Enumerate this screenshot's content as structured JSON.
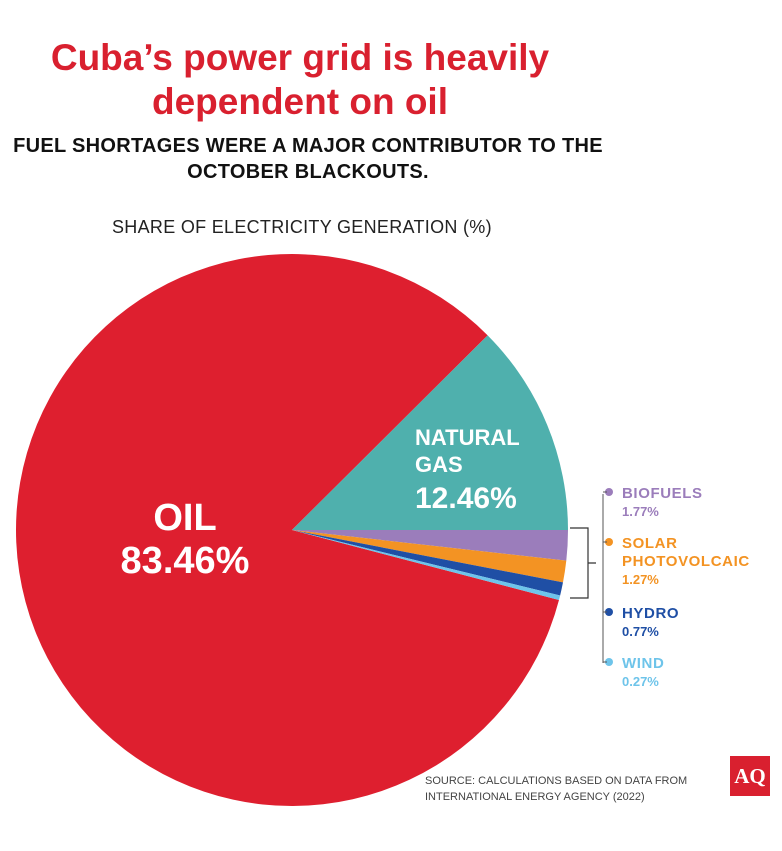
{
  "header": {
    "title": "Cuba’s power grid is heavily dependent on oil",
    "subtitle": "FUEL SHORTAGES WERE A MAJOR CONTRIBUTOR TO THE OCTOBER BLACKOUTS."
  },
  "chart_data": {
    "type": "pie",
    "title": "SHARE OF ELECTRICITY GENERATION (%)",
    "slices": [
      {
        "label": "OIL",
        "value": 83.46,
        "value_label": "83.46%",
        "color": "#de1f2f"
      },
      {
        "label": "NATURAL GAS",
        "value": 12.46,
        "value_label": "12.46%",
        "color": "#4fb0ad"
      },
      {
        "label": "BIOFUELS",
        "value": 1.77,
        "value_label": "1.77%",
        "color": "#9b7dbb"
      },
      {
        "label": "SOLAR PHOTOVOLCAIC",
        "value": 1.27,
        "value_label": "1.27%",
        "color": "#f39323"
      },
      {
        "label": "HYDRO",
        "value": 0.77,
        "value_label": "0.77%",
        "color": "#1f4fa5"
      },
      {
        "label": "WIND",
        "value": 0.27,
        "value_label": "0.27%",
        "color": "#6ec4ea"
      }
    ]
  },
  "footer": {
    "source_line1": "SOURCE: CALCULATIONS BASED ON DATA FROM",
    "source_line2": "INTERNATIONAL ENERGY AGENCY (2022)",
    "logo": "AQ"
  }
}
